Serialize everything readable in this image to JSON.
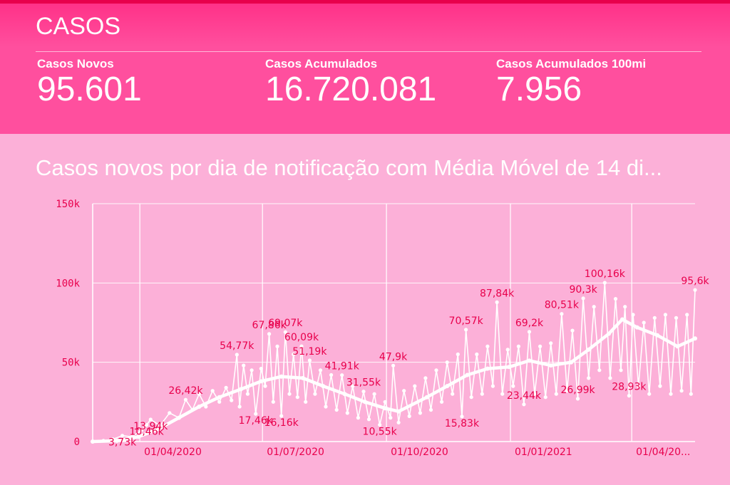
{
  "header": {
    "title": "CASOS"
  },
  "kpis": [
    {
      "label": "Casos Novos",
      "value": "95.601"
    },
    {
      "label": "Casos Acumulados",
      "value": "16.720.081"
    },
    {
      "label": "Casos Acumulados 100mi",
      "value": "7.956"
    }
  ],
  "colors": {
    "header": "#ff4f9e",
    "background": "#fcb0d8",
    "series": "#ffffff",
    "labels": "#e8004c"
  },
  "chart_data": {
    "type": "line",
    "title": "Casos novos por dia de notificação com Média Móvel de 14 di...",
    "x_start": "2020-02-26",
    "x_end": "2021-05-18",
    "ylim": [
      0,
      150000
    ],
    "y_ticks": [
      {
        "value": 0,
        "label": "0"
      },
      {
        "value": 50000,
        "label": "50k"
      },
      {
        "value": 100000,
        "label": "100k"
      },
      {
        "value": 150000,
        "label": "150k"
      }
    ],
    "x_ticks": [
      {
        "date": "2020-04-01",
        "label": "01/04/2020"
      },
      {
        "date": "2020-07-01",
        "label": "01/07/2020"
      },
      {
        "date": "2020-10-01",
        "label": "01/10/2020"
      },
      {
        "date": "2021-01-01",
        "label": "01/01/2021"
      },
      {
        "date": "2021-04-01",
        "label": "01/04/20..."
      }
    ],
    "grid": true,
    "series": [
      {
        "role": "daily",
        "points": [
          [
            "2020-02-26",
            0
          ],
          [
            "2020-03-05",
            500
          ],
          [
            "2020-03-12",
            1500
          ],
          [
            "2020-03-19",
            3730
          ],
          [
            "2020-03-26",
            3000
          ],
          [
            "2020-04-02",
            7000
          ],
          [
            "2020-04-06",
            10460
          ],
          [
            "2020-04-09",
            13940
          ],
          [
            "2020-04-16",
            10000
          ],
          [
            "2020-04-23",
            18000
          ],
          [
            "2020-04-30",
            15000
          ],
          [
            "2020-05-05",
            26420
          ],
          [
            "2020-05-10",
            20000
          ],
          [
            "2020-05-15",
            30000
          ],
          [
            "2020-05-20",
            22000
          ],
          [
            "2020-05-25",
            32000
          ],
          [
            "2020-05-30",
            25000
          ],
          [
            "2020-06-04",
            34000
          ],
          [
            "2020-06-08",
            26000
          ],
          [
            "2020-06-12",
            54770
          ],
          [
            "2020-06-14",
            22000
          ],
          [
            "2020-06-17",
            48000
          ],
          [
            "2020-06-20",
            30000
          ],
          [
            "2020-06-23",
            45000
          ],
          [
            "2020-06-26",
            17460
          ],
          [
            "2020-06-30",
            46000
          ],
          [
            "2020-07-03",
            35000
          ],
          [
            "2020-07-06",
            67860
          ],
          [
            "2020-07-09",
            25000
          ],
          [
            "2020-07-12",
            60000
          ],
          [
            "2020-07-15",
            16160
          ],
          [
            "2020-07-18",
            69070
          ],
          [
            "2020-07-21",
            30000
          ],
          [
            "2020-07-24",
            55000
          ],
          [
            "2020-07-27",
            28000
          ],
          [
            "2020-07-30",
            60090
          ],
          [
            "2020-08-02",
            25000
          ],
          [
            "2020-08-05",
            51190
          ],
          [
            "2020-08-09",
            30000
          ],
          [
            "2020-08-13",
            45000
          ],
          [
            "2020-08-17",
            22000
          ],
          [
            "2020-08-21",
            42000
          ],
          [
            "2020-08-25",
            20000
          ],
          [
            "2020-08-29",
            41910
          ],
          [
            "2020-09-02",
            18000
          ],
          [
            "2020-09-06",
            35000
          ],
          [
            "2020-09-10",
            15000
          ],
          [
            "2020-09-14",
            31550
          ],
          [
            "2020-09-18",
            14000
          ],
          [
            "2020-09-22",
            30000
          ],
          [
            "2020-09-26",
            10550
          ],
          [
            "2020-09-30",
            25000
          ],
          [
            "2020-10-04",
            15000
          ],
          [
            "2020-10-06",
            47900
          ],
          [
            "2020-10-10",
            12000
          ],
          [
            "2020-10-14",
            32000
          ],
          [
            "2020-10-18",
            16000
          ],
          [
            "2020-10-22",
            35000
          ],
          [
            "2020-10-26",
            18000
          ],
          [
            "2020-10-30",
            40000
          ],
          [
            "2020-11-03",
            20000
          ],
          [
            "2020-11-07",
            45000
          ],
          [
            "2020-11-11",
            25000
          ],
          [
            "2020-11-15",
            50000
          ],
          [
            "2020-11-19",
            30000
          ],
          [
            "2020-11-23",
            55000
          ],
          [
            "2020-11-26",
            15830
          ],
          [
            "2020-11-29",
            70570
          ],
          [
            "2020-12-03",
            28000
          ],
          [
            "2020-12-07",
            55000
          ],
          [
            "2020-12-11",
            30000
          ],
          [
            "2020-12-15",
            60000
          ],
          [
            "2020-12-19",
            35000
          ],
          [
            "2020-12-22",
            87840
          ],
          [
            "2020-12-26",
            30000
          ],
          [
            "2020-12-30",
            58000
          ],
          [
            "2021-01-03",
            35000
          ],
          [
            "2021-01-07",
            60000
          ],
          [
            "2021-01-11",
            23440
          ],
          [
            "2021-01-15",
            69200
          ],
          [
            "2021-01-19",
            30000
          ],
          [
            "2021-01-23",
            60000
          ],
          [
            "2021-01-27",
            28000
          ],
          [
            "2021-01-31",
            62000
          ],
          [
            "2021-02-04",
            30000
          ],
          [
            "2021-02-08",
            80510
          ],
          [
            "2021-02-12",
            32000
          ],
          [
            "2021-02-16",
            70000
          ],
          [
            "2021-02-20",
            26990
          ],
          [
            "2021-02-24",
            90300
          ],
          [
            "2021-02-28",
            40000
          ],
          [
            "2021-03-04",
            85000
          ],
          [
            "2021-03-08",
            45000
          ],
          [
            "2021-03-12",
            100160
          ],
          [
            "2021-03-16",
            40000
          ],
          [
            "2021-03-20",
            90000
          ],
          [
            "2021-03-24",
            45000
          ],
          [
            "2021-03-27",
            85000
          ],
          [
            "2021-03-30",
            28930
          ],
          [
            "2021-04-02",
            80000
          ],
          [
            "2021-04-06",
            35000
          ],
          [
            "2021-04-10",
            75000
          ],
          [
            "2021-04-14",
            30000
          ],
          [
            "2021-04-18",
            78000
          ],
          [
            "2021-04-22",
            35000
          ],
          [
            "2021-04-26",
            80000
          ],
          [
            "2021-04-30",
            30000
          ],
          [
            "2021-05-04",
            78000
          ],
          [
            "2021-05-08",
            32000
          ],
          [
            "2021-05-12",
            80000
          ],
          [
            "2021-05-15",
            30000
          ],
          [
            "2021-05-18",
            95600
          ]
        ]
      },
      {
        "role": "moving-average-14d",
        "points": [
          [
            "2020-02-26",
            0
          ],
          [
            "2020-03-15",
            500
          ],
          [
            "2020-03-31",
            3000
          ],
          [
            "2020-04-15",
            8000
          ],
          [
            "2020-04-30",
            15000
          ],
          [
            "2020-05-15",
            22000
          ],
          [
            "2020-05-30",
            28000
          ],
          [
            "2020-06-15",
            33000
          ],
          [
            "2020-06-30",
            38000
          ],
          [
            "2020-07-15",
            41000
          ],
          [
            "2020-07-31",
            40000
          ],
          [
            "2020-08-15",
            35000
          ],
          [
            "2020-08-31",
            30000
          ],
          [
            "2020-09-15",
            25000
          ],
          [
            "2020-09-30",
            21000
          ],
          [
            "2020-10-10",
            19000
          ],
          [
            "2020-10-31",
            28000
          ],
          [
            "2020-11-15",
            35000
          ],
          [
            "2020-11-30",
            42000
          ],
          [
            "2020-12-15",
            46000
          ],
          [
            "2020-12-31",
            47000
          ],
          [
            "2021-01-15",
            51000
          ],
          [
            "2021-01-31",
            48000
          ],
          [
            "2021-02-15",
            50000
          ],
          [
            "2021-02-28",
            58000
          ],
          [
            "2021-03-15",
            68000
          ],
          [
            "2021-03-25",
            77000
          ],
          [
            "2021-04-05",
            72000
          ],
          [
            "2021-04-20",
            67000
          ],
          [
            "2021-05-05",
            60000
          ],
          [
            "2021-05-18",
            65000
          ]
        ]
      }
    ],
    "annotations": [
      {
        "date": "2020-03-19",
        "value": 3730,
        "label": "3,73k"
      },
      {
        "date": "2020-04-06",
        "value": 10460,
        "label": "10,46k"
      },
      {
        "date": "2020-04-09",
        "value": 13940,
        "label": "13,94k"
      },
      {
        "date": "2020-05-05",
        "value": 26420,
        "label": "26,42k"
      },
      {
        "date": "2020-06-12",
        "value": 54770,
        "label": "54,77k"
      },
      {
        "date": "2020-06-26",
        "value": 17460,
        "label": "17,46k"
      },
      {
        "date": "2020-07-06",
        "value": 67860,
        "label": "67,86k"
      },
      {
        "date": "2020-07-15",
        "value": 16160,
        "label": "16,16k"
      },
      {
        "date": "2020-07-18",
        "value": 69070,
        "label": "69,07k"
      },
      {
        "date": "2020-07-30",
        "value": 60090,
        "label": "60,09k"
      },
      {
        "date": "2020-08-05",
        "value": 51190,
        "label": "51,19k"
      },
      {
        "date": "2020-08-29",
        "value": 41910,
        "label": "41,91k"
      },
      {
        "date": "2020-09-14",
        "value": 31550,
        "label": "31,55k"
      },
      {
        "date": "2020-09-26",
        "value": 10550,
        "label": "10,55k"
      },
      {
        "date": "2020-10-06",
        "value": 47900,
        "label": "47,9k"
      },
      {
        "date": "2020-11-26",
        "value": 15830,
        "label": "15,83k"
      },
      {
        "date": "2020-11-29",
        "value": 70570,
        "label": "70,57k"
      },
      {
        "date": "2020-12-22",
        "value": 87840,
        "label": "87,84k"
      },
      {
        "date": "2021-01-11",
        "value": 23440,
        "label": "23,44k"
      },
      {
        "date": "2021-01-15",
        "value": 69200,
        "label": "69,2k"
      },
      {
        "date": "2021-02-08",
        "value": 80510,
        "label": "80,51k"
      },
      {
        "date": "2021-02-20",
        "value": 26990,
        "label": "26,99k"
      },
      {
        "date": "2021-02-24",
        "value": 90300,
        "label": "90,3k"
      },
      {
        "date": "2021-03-12",
        "value": 100160,
        "label": "100,16k"
      },
      {
        "date": "2021-03-30",
        "value": 28930,
        "label": "28,93k"
      },
      {
        "date": "2021-05-18",
        "value": 95600,
        "label": "95,6k"
      }
    ]
  }
}
